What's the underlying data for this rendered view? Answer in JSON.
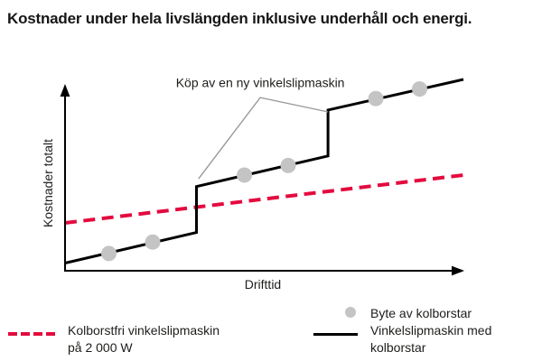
{
  "title": "Kostnader under hela livslängden inklusive underhåll och energi.",
  "chart_data": {
    "type": "line",
    "title": "Kostnader under hela livslängden inklusive underhåll och energi.",
    "xlabel": "Drifttid",
    "ylabel": "Kostnader totalt",
    "xlim": [
      0,
      100
    ],
    "ylim": [
      0,
      100
    ],
    "grid": false,
    "ticks": "none (qualitative illustration, unlabeled axes with arrowheads)",
    "series": [
      {
        "name": "Vinkelslipmaskin med kolborstar",
        "style": "solid stepped",
        "color": "#000000",
        "points": [
          [
            0,
            4
          ],
          [
            33,
            20
          ],
          [
            33,
            44
          ],
          [
            66,
            60
          ],
          [
            66,
            84
          ],
          [
            100,
            100
          ]
        ]
      },
      {
        "name": "Kolborstfri vinkelslipmaskin på 2 000 W",
        "style": "dashed",
        "color": "#e30b3e",
        "points": [
          [
            0,
            25
          ],
          [
            100,
            50
          ]
        ]
      }
    ],
    "markers": {
      "name": "Byte av kolborstar",
      "color": "#c4c4c4",
      "points": [
        [
          11,
          9
        ],
        [
          22,
          15
        ],
        [
          45,
          50
        ],
        [
          56,
          55
        ],
        [
          78,
          90
        ],
        [
          89,
          95
        ]
      ]
    },
    "annotation": {
      "text": "Köp av en ny vinkelslipmaskin",
      "text_xy": [
        49,
        96
      ],
      "leader_points": [
        [
          33.5,
          48
        ],
        [
          49,
          90.5
        ],
        [
          66,
          83
        ]
      ],
      "leader_color": "#999999"
    },
    "legend_position": "below chart"
  },
  "legend": {
    "brushless": {
      "line1": "Kolborstfri vinkelslipmaskin",
      "line2": "på 2 000 W"
    },
    "markers": {
      "label": "Byte av kolborstar"
    },
    "brush": {
      "line1": "Vinkelslipmaskin med",
      "line2": "kolborstar"
    }
  }
}
